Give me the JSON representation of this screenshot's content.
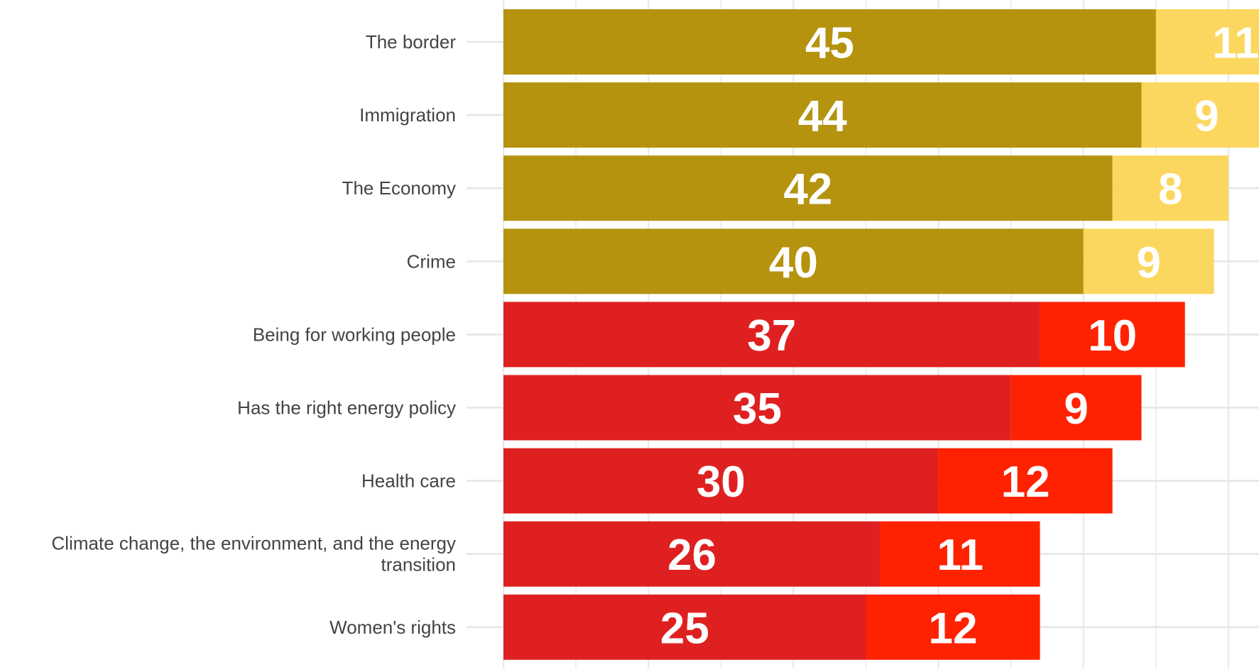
{
  "chart_data": {
    "type": "bar",
    "orientation": "horizontal",
    "stacked": true,
    "grid": true,
    "xlim": [
      0,
      57.5
    ],
    "categories": [
      "The border",
      "Immigration",
      "The Economy",
      "Crime",
      "Being for working people",
      "Has the right energy policy",
      "Health care",
      "Climate change, the environment, and the energy transition",
      "Women's rights"
    ],
    "category_label_lines": [
      [
        "The border"
      ],
      [
        "Immigration"
      ],
      [
        "The Economy"
      ],
      [
        "Crime"
      ],
      [
        "Being for working people"
      ],
      [
        "Has the right energy policy"
      ],
      [
        "Health care"
      ],
      [
        "Climate change, the environment, and the energy",
        "transition"
      ],
      [
        "Women's rights"
      ]
    ],
    "series": [
      {
        "values": [
          45,
          44,
          42,
          40,
          37,
          35,
          30,
          26,
          25
        ]
      },
      {
        "values": [
          11,
          9,
          8,
          9,
          10,
          9,
          12,
          11,
          12
        ]
      }
    ],
    "colors": {
      "group_a_primary": "#b5930f",
      "group_a_secondary": "#fbd75f",
      "group_b_primary": "#df2020",
      "group_b_secondary": "#ff2200",
      "category_text": "#444444",
      "value_text": "#ffffff",
      "gridline": "#ebebeb",
      "tick": "#e6e6e6"
    },
    "color_group_by_category": [
      "a",
      "a",
      "a",
      "a",
      "b",
      "b",
      "b",
      "b",
      "b"
    ]
  }
}
